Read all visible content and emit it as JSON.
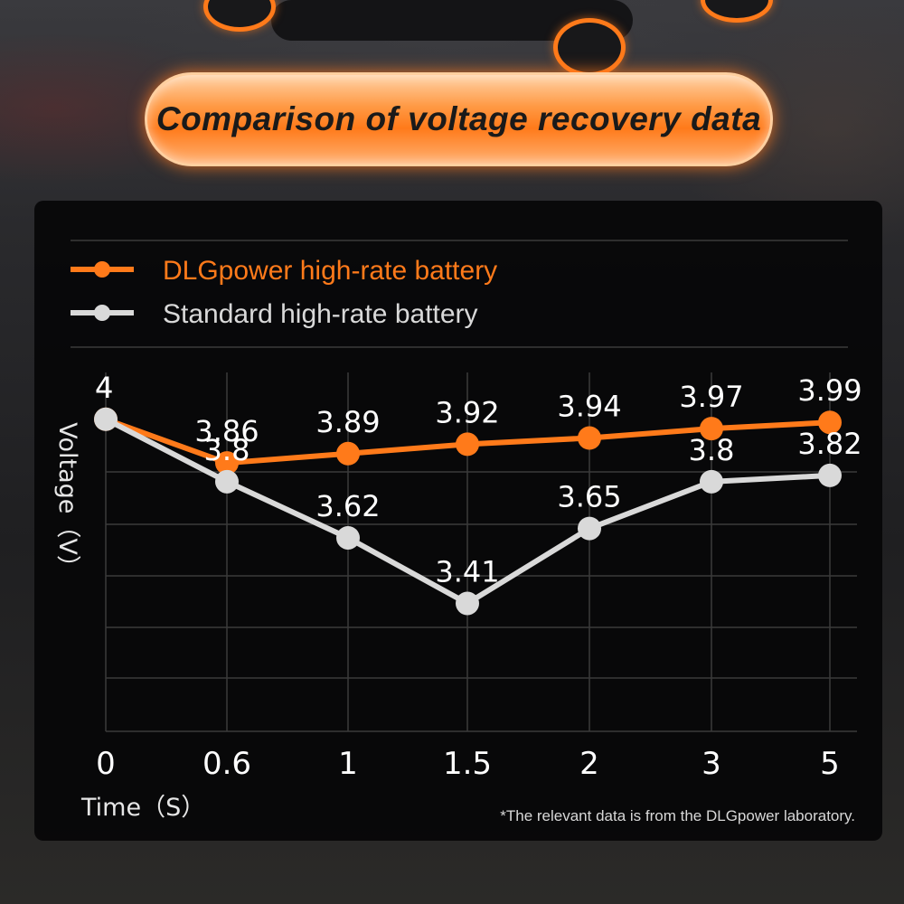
{
  "title": "Comparison of voltage recovery data",
  "footnote": "*The relevant data is from the DLGpower laboratory.",
  "colors": {
    "accent": "#ff7a1a",
    "standard": "#d9d9d9",
    "panel": "#060607",
    "grid": "#3a3a3a"
  },
  "chart_data": {
    "type": "line",
    "x": [
      "0",
      "0.6",
      "1",
      "1.5",
      "2",
      "3",
      "5"
    ],
    "xlabel": "Time（S）",
    "ylabel": "Voltage（V）",
    "ylim": [
      3.0,
      4.15
    ],
    "grid": true,
    "legend_position": "top-left",
    "series": [
      {
        "name": "DLGpower high-rate battery",
        "color": "#ff7a1a",
        "values": [
          4,
          3.86,
          3.89,
          3.92,
          3.94,
          3.97,
          3.99
        ],
        "labels": [
          "4",
          "3.86",
          "3.89",
          "3.92",
          "3.94",
          "3.97",
          "3.99"
        ]
      },
      {
        "name": "Standard high-rate battery",
        "color": "#d9d9d9",
        "values": [
          4,
          3.8,
          3.62,
          3.41,
          3.65,
          3.8,
          3.82
        ],
        "labels": [
          "4",
          "3.8",
          "3.62",
          "3.41",
          "3.65",
          "3.8",
          "3.82"
        ]
      }
    ]
  }
}
